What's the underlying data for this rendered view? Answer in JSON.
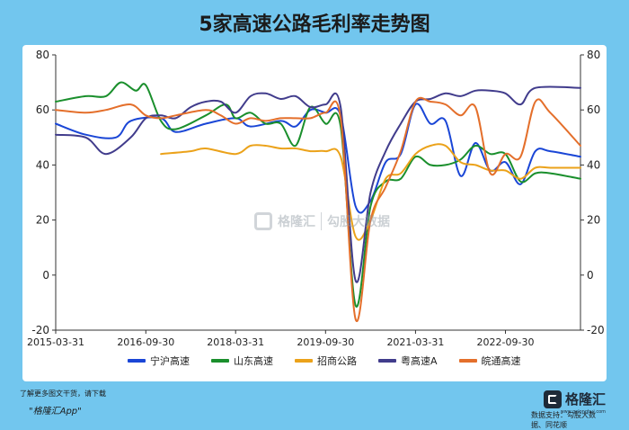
{
  "page": {
    "title": "5家高速公路毛利率走势图",
    "source": "数据支持：勾股大数据、同花顺",
    "watermark_brand": "格隆汇",
    "watermark_partner": "勾股大数据",
    "footer_note": "了解更多图文干货，请下载",
    "footer_app": "\"格隆汇App\"",
    "brand_name": "格隆汇",
    "brand_sub": "www.gelonghui.com"
  },
  "chart_data": {
    "type": "line",
    "title": "5家高速公路毛利率走势图",
    "x_ticks": [
      "2015-03-31",
      "2016-09-30",
      "2018-03-31",
      "2019-09-30",
      "2021-03-31",
      "2022-09-30"
    ],
    "x_range": [
      "2015-03-31",
      "2023-12-31"
    ],
    "ylim": [
      -20,
      80
    ],
    "y_ticks": [
      -20,
      0,
      20,
      40,
      60,
      80
    ],
    "secondary_y_ticks": [
      -20,
      0,
      20,
      40,
      60,
      80
    ],
    "grid": false,
    "legend_position": "bottom",
    "series": [
      {
        "name": "宁沪高速",
        "color": "#1a46d6",
        "points": [
          [
            "2015-03-31",
            55
          ],
          [
            "2015-09-30",
            51
          ],
          [
            "2016-03-31",
            50
          ],
          [
            "2016-06-30",
            56
          ],
          [
            "2016-12-31",
            57
          ],
          [
            "2017-03-31",
            52
          ],
          [
            "2017-09-30",
            55
          ],
          [
            "2018-03-31",
            57
          ],
          [
            "2018-06-30",
            54
          ],
          [
            "2018-12-31",
            56
          ],
          [
            "2019-03-31",
            54
          ],
          [
            "2019-06-30",
            60
          ],
          [
            "2019-09-30",
            59
          ],
          [
            "2019-12-31",
            58
          ],
          [
            "2020-03-31",
            25
          ],
          [
            "2020-06-30",
            27
          ],
          [
            "2020-09-30",
            41
          ],
          [
            "2020-12-31",
            44
          ],
          [
            "2021-03-31",
            62
          ],
          [
            "2021-06-30",
            55
          ],
          [
            "2021-09-30",
            56
          ],
          [
            "2021-12-31",
            36
          ],
          [
            "2022-03-31",
            48
          ],
          [
            "2022-06-30",
            38
          ],
          [
            "2022-09-30",
            41
          ],
          [
            "2022-12-31",
            33
          ],
          [
            "2023-03-31",
            45
          ],
          [
            "2023-06-30",
            45
          ],
          [
            "2023-12-31",
            43
          ]
        ]
      },
      {
        "name": "山东高速",
        "color": "#1a8f2c",
        "points": [
          [
            "2015-03-31",
            63
          ],
          [
            "2015-09-30",
            65
          ],
          [
            "2016-01-31",
            65
          ],
          [
            "2016-04-30",
            70
          ],
          [
            "2016-07-31",
            67
          ],
          [
            "2016-09-30",
            69
          ],
          [
            "2016-12-31",
            56
          ],
          [
            "2017-03-31",
            53
          ],
          [
            "2017-09-30",
            58
          ],
          [
            "2018-01-31",
            62
          ],
          [
            "2018-03-31",
            57
          ],
          [
            "2018-06-30",
            59
          ],
          [
            "2018-09-30",
            55
          ],
          [
            "2018-12-31",
            55
          ],
          [
            "2019-03-31",
            47
          ],
          [
            "2019-06-30",
            61
          ],
          [
            "2019-09-30",
            55
          ],
          [
            "2019-12-31",
            54
          ],
          [
            "2020-03-31",
            -11
          ],
          [
            "2020-06-30",
            25
          ],
          [
            "2020-09-30",
            34
          ],
          [
            "2020-12-31",
            35
          ],
          [
            "2021-03-31",
            43
          ],
          [
            "2021-06-30",
            40
          ],
          [
            "2021-09-30",
            40
          ],
          [
            "2021-12-31",
            42
          ],
          [
            "2022-03-31",
            47
          ],
          [
            "2022-06-30",
            44
          ],
          [
            "2022-09-30",
            44
          ],
          [
            "2022-12-31",
            34
          ],
          [
            "2023-03-31",
            37
          ],
          [
            "2023-06-30",
            37
          ],
          [
            "2023-12-31",
            35
          ]
        ]
      },
      {
        "name": "招商公路",
        "color": "#eba21a",
        "points": [
          [
            "2016-12-31",
            44
          ],
          [
            "2017-06-30",
            45
          ],
          [
            "2017-09-30",
            46
          ],
          [
            "2018-03-31",
            44
          ],
          [
            "2018-06-30",
            47
          ],
          [
            "2018-09-30",
            47
          ],
          [
            "2018-12-31",
            46
          ],
          [
            "2019-03-31",
            46
          ],
          [
            "2019-06-30",
            45
          ],
          [
            "2019-09-30",
            45
          ],
          [
            "2019-12-31",
            43
          ],
          [
            "2020-03-31",
            14
          ],
          [
            "2020-06-30",
            20
          ],
          [
            "2020-09-30",
            35
          ],
          [
            "2020-12-31",
            37
          ],
          [
            "2021-03-31",
            44
          ],
          [
            "2021-06-30",
            47
          ],
          [
            "2021-09-30",
            47
          ],
          [
            "2021-12-31",
            41
          ],
          [
            "2022-03-31",
            40
          ],
          [
            "2022-06-30",
            38
          ],
          [
            "2022-09-30",
            38
          ],
          [
            "2022-12-31",
            35
          ],
          [
            "2023-03-31",
            39
          ],
          [
            "2023-06-30",
            39
          ],
          [
            "2023-12-31",
            39
          ]
        ]
      },
      {
        "name": "粤高速A",
        "color": "#413c8c",
        "points": [
          [
            "2015-03-31",
            51
          ],
          [
            "2015-09-30",
            50
          ],
          [
            "2016-01-31",
            44
          ],
          [
            "2016-06-30",
            50
          ],
          [
            "2016-09-30",
            57
          ],
          [
            "2016-12-31",
            58
          ],
          [
            "2017-03-31",
            57
          ],
          [
            "2017-06-30",
            61
          ],
          [
            "2017-09-30",
            63
          ],
          [
            "2017-12-31",
            63
          ],
          [
            "2018-03-31",
            59
          ],
          [
            "2018-06-30",
            65
          ],
          [
            "2018-09-30",
            66
          ],
          [
            "2018-12-31",
            64
          ],
          [
            "2019-03-31",
            65
          ],
          [
            "2019-06-30",
            61
          ],
          [
            "2019-09-30",
            62
          ],
          [
            "2019-12-31",
            61
          ],
          [
            "2020-03-31",
            -2
          ],
          [
            "2020-06-30",
            30
          ],
          [
            "2020-09-30",
            45
          ],
          [
            "2020-12-31",
            55
          ],
          [
            "2021-03-31",
            63
          ],
          [
            "2021-06-30",
            64
          ],
          [
            "2021-09-30",
            66
          ],
          [
            "2021-12-31",
            65
          ],
          [
            "2022-03-31",
            67
          ],
          [
            "2022-06-30",
            67
          ],
          [
            "2022-09-30",
            66
          ],
          [
            "2022-12-31",
            62
          ],
          [
            "2023-03-31",
            68
          ],
          [
            "2023-12-31",
            68
          ]
        ]
      },
      {
        "name": "皖通高速",
        "color": "#e46f2b",
        "points": [
          [
            "2015-03-31",
            60
          ],
          [
            "2015-09-30",
            59
          ],
          [
            "2016-01-31",
            60
          ],
          [
            "2016-06-30",
            62
          ],
          [
            "2016-09-30",
            58
          ],
          [
            "2016-12-31",
            57
          ],
          [
            "2017-03-31",
            58
          ],
          [
            "2017-09-30",
            60
          ],
          [
            "2017-12-31",
            58
          ],
          [
            "2018-03-31",
            55
          ],
          [
            "2018-06-30",
            57
          ],
          [
            "2018-09-30",
            56
          ],
          [
            "2018-12-31",
            57
          ],
          [
            "2019-03-31",
            57
          ],
          [
            "2019-06-30",
            57
          ],
          [
            "2019-09-30",
            59
          ],
          [
            "2019-12-31",
            57
          ],
          [
            "2020-03-31",
            -16
          ],
          [
            "2020-06-30",
            20
          ],
          [
            "2020-09-30",
            32
          ],
          [
            "2020-12-31",
            45
          ],
          [
            "2021-03-31",
            63
          ],
          [
            "2021-06-30",
            63
          ],
          [
            "2021-09-30",
            62
          ],
          [
            "2021-12-31",
            58
          ],
          [
            "2022-03-31",
            61
          ],
          [
            "2022-06-30",
            37
          ],
          [
            "2022-09-30",
            44
          ],
          [
            "2022-12-31",
            43
          ],
          [
            "2023-03-31",
            63
          ],
          [
            "2023-06-30",
            59
          ],
          [
            "2023-12-31",
            47
          ]
        ]
      }
    ]
  }
}
